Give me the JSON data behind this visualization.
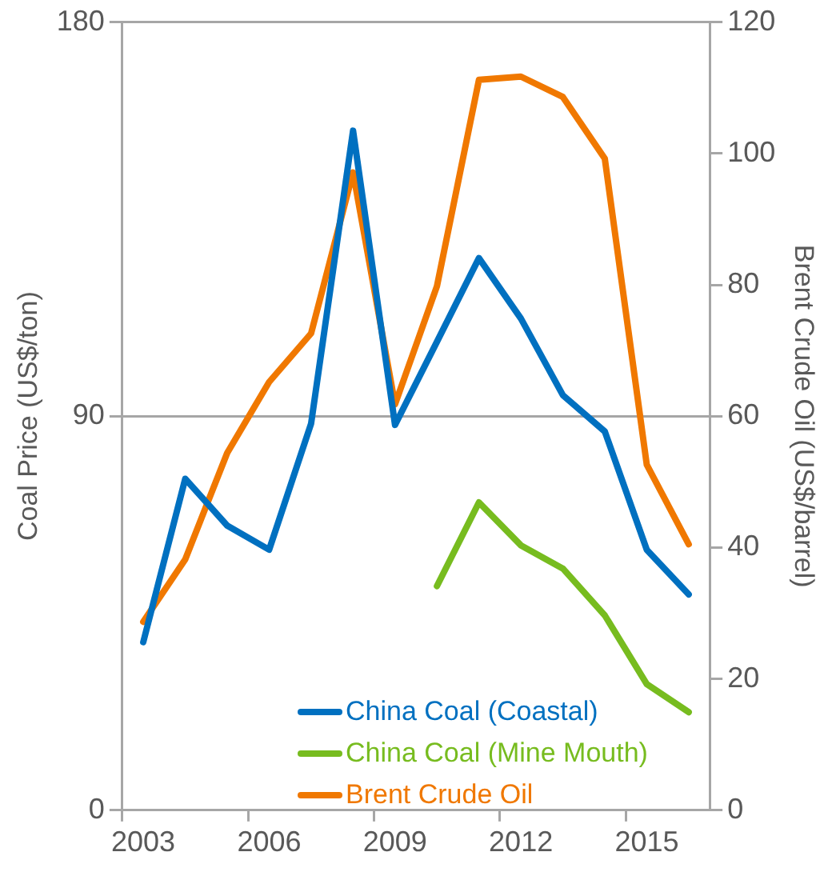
{
  "chart_data": {
    "type": "line",
    "categories": [
      "2003",
      null,
      null,
      "2006",
      null,
      null,
      "2009",
      null,
      null,
      "2012",
      null,
      null,
      "2015",
      null
    ],
    "series": [
      {
        "name": "China Coal (Coastal)",
        "color": "#0070c0",
        "axis": "y",
        "values": [
          38.4,
          75.7,
          65,
          59.5,
          88.3,
          155.2,
          88,
          107,
          126.1,
          112.3,
          94.8,
          86.5,
          59.5,
          49.3
        ]
      },
      {
        "name": "China Coal (Mine Mouth)",
        "color": "#77bc1f",
        "axis": "y",
        "values": [
          null,
          null,
          null,
          null,
          null,
          null,
          null,
          51.2,
          70.3,
          60.5,
          55.2,
          44.5,
          28.8,
          22.4
        ]
      },
      {
        "name": "Brent Crude Oil",
        "color": "#f07800",
        "axis": "y2",
        "values": [
          28.7,
          38.2,
          54.4,
          65.2,
          72.6,
          97.1,
          61.8,
          79.8,
          111.2,
          111.7,
          108.6,
          99.2,
          52.6,
          40.5
        ]
      }
    ],
    "ylabel": "Coal Price (US$/ton)",
    "y2label": "Brent Crude Oil (US$/barrel)",
    "ylim": [
      0,
      180
    ],
    "yticks": [
      0,
      90,
      180
    ],
    "y2lim": [
      0,
      120
    ],
    "y2ticks": [
      0,
      20,
      40,
      60,
      80,
      100,
      120
    ],
    "grid": "y",
    "legend": "bottom",
    "marker": "none",
    "line_style": "solid"
  }
}
